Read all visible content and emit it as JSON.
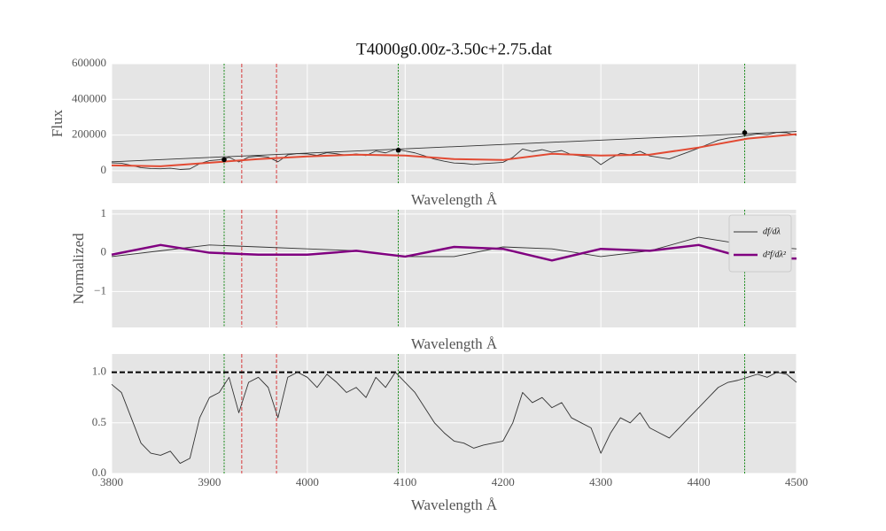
{
  "chart_data": [
    {
      "type": "line",
      "title": "T4000g0.00z-3.50c+2.75.dat",
      "xlabel": "Wavelength Å",
      "ylabel": "Flux",
      "xlim": [
        3800,
        4500
      ],
      "ylim": [
        -70000,
        600000
      ],
      "xticks": [
        3800,
        3900,
        4000,
        4100,
        4200,
        4300,
        4400,
        4500
      ],
      "xtick_labels": false,
      "yticks": [
        0,
        200000,
        400000,
        600000
      ],
      "grid": true,
      "vlines": [
        {
          "x": 3915,
          "color": "green",
          "style": "dotted"
        },
        {
          "x": 3933,
          "color": "#d62728",
          "style": "dashed"
        },
        {
          "x": 3968.5,
          "color": "#d62728",
          "style": "dashed"
        },
        {
          "x": 4093,
          "color": "green",
          "style": "dotted"
        },
        {
          "x": 4447,
          "color": "green",
          "style": "dotted"
        }
      ],
      "series": [
        {
          "color": "#333333",
          "width": 0.9,
          "x": [
            3800,
            3810,
            3820,
            3830,
            3840,
            3850,
            3860,
            3870,
            3880,
            3890,
            3900,
            3910,
            3920,
            3930,
            3940,
            3950,
            3960,
            3970,
            3980,
            3990,
            4000,
            4010,
            4020,
            4030,
            4040,
            4050,
            4060,
            4070,
            4080,
            4090,
            4100,
            4110,
            4120,
            4130,
            4140,
            4150,
            4160,
            4170,
            4180,
            4190,
            4200,
            4210,
            4220,
            4230,
            4240,
            4250,
            4260,
            4270,
            4280,
            4290,
            4300,
            4310,
            4320,
            4330,
            4340,
            4350,
            4360,
            4370,
            4380,
            4390,
            4400,
            4410,
            4420,
            4430,
            4440,
            4450,
            4460,
            4470,
            4480,
            4490,
            4500
          ],
          "values": [
            44000,
            42000,
            30000,
            17000,
            12000,
            11000,
            14000,
            7000,
            10000,
            40000,
            56000,
            61000,
            75000,
            49000,
            76000,
            82000,
            76000,
            50000,
            89000,
            96000,
            94000,
            86000,
            101000,
            95000,
            87000,
            94000,
            85000,
            110000,
            100000,
            120000,
            111000,
            100000,
            83000,
            65000,
            53000,
            43000,
            41000,
            35000,
            40000,
            43000,
            47000,
            75000,
            122000,
            108000,
            118000,
            104000,
            113000,
            90000,
            83000,
            76000,
            34000,
            70000,
            97000,
            89000,
            109000,
            83000,
            74000,
            66000,
            86000,
            106000,
            127000,
            149000,
            171000,
            183000,
            189000,
            198000,
            206000,
            202000,
            215000,
            213000,
            198000
          ]
        },
        {
          "color": "#333333",
          "width": 0.9,
          "x": [
            3800,
            4500
          ],
          "values": [
            50000,
            220000
          ]
        },
        {
          "color": "#e24a33",
          "width": 2,
          "x": [
            3800,
            3850,
            3900,
            3950,
            4000,
            4050,
            4100,
            4150,
            4200,
            4250,
            4300,
            4350,
            4400,
            4450,
            4500
          ],
          "values": [
            30000,
            25000,
            45000,
            65000,
            80000,
            90000,
            85000,
            65000,
            60000,
            95000,
            85000,
            90000,
            130000,
            180000,
            205000
          ]
        },
        {
          "color": "#000000",
          "marker": true,
          "x": [
            3915,
            4093,
            4447
          ],
          "values": [
            62000,
            115000,
            213000
          ]
        }
      ]
    },
    {
      "type": "line",
      "xlabel": "Wavelength Å",
      "ylabel": "Normalized",
      "xlim": [
        3800,
        4500
      ],
      "ylim": [
        -1.93,
        1.11
      ],
      "xticks": [
        3800,
        3900,
        4000,
        4100,
        4200,
        4300,
        4400,
        4500
      ],
      "xtick_labels": false,
      "yticks": [
        {
          "value": -1,
          "label": "−1"
        },
        0,
        1
      ],
      "grid": true,
      "legend": "upper right",
      "vlines": [
        {
          "x": 3915,
          "color": "green",
          "style": "dotted"
        },
        {
          "x": 3933,
          "color": "#d62728",
          "style": "dashed"
        },
        {
          "x": 3968.5,
          "color": "#d62728",
          "style": "dashed"
        },
        {
          "x": 4093,
          "color": "green",
          "style": "dotted"
        },
        {
          "x": 4447,
          "color": "green",
          "style": "dotted"
        }
      ],
      "series": [
        {
          "name": "df/dλ",
          "color": "#333333",
          "width": 0.9,
          "x": [
            3800,
            3850,
            3900,
            3950,
            4000,
            4050,
            4100,
            4150,
            4200,
            4250,
            4300,
            4350,
            4400,
            4450,
            4500
          ],
          "values": [
            -0.1,
            0.05,
            0.2,
            0.15,
            0.1,
            0.05,
            -0.1,
            -0.1,
            0.15,
            0.1,
            -0.1,
            0.05,
            0.4,
            0.2,
            0.1
          ]
        },
        {
          "name": "d²f/dλ²",
          "color": "#800080",
          "width": 2.5,
          "x": [
            3800,
            3850,
            3900,
            3950,
            4000,
            4050,
            4100,
            4150,
            4200,
            4250,
            4300,
            4350,
            4400,
            4450,
            4500
          ],
          "values": [
            -0.05,
            0.2,
            0.0,
            -0.05,
            -0.05,
            0.05,
            -0.1,
            0.15,
            0.1,
            -0.2,
            0.1,
            0.05,
            0.2,
            -0.15,
            -0.15
          ]
        }
      ]
    },
    {
      "type": "line",
      "xlabel": "Wavelength Å",
      "xlim": [
        3800,
        4500
      ],
      "ylim": [
        0,
        1.18
      ],
      "xticks": [
        3800,
        3900,
        4000,
        4100,
        4200,
        4300,
        4400,
        4500
      ],
      "xtick_labels": true,
      "yticks": [
        {
          "value": 0,
          "label": "0.0"
        },
        {
          "value": 0.5,
          "label": "0.5"
        },
        {
          "value": 1,
          "label": "1.0"
        }
      ],
      "grid": true,
      "vlines": [
        {
          "x": 3915,
          "color": "green",
          "style": "dotted"
        },
        {
          "x": 3933,
          "color": "#d62728",
          "style": "dashed"
        },
        {
          "x": 3968.5,
          "color": "#d62728",
          "style": "dashed"
        },
        {
          "x": 4093,
          "color": "green",
          "style": "dotted"
        },
        {
          "x": 4447,
          "color": "green",
          "style": "dotted"
        }
      ],
      "hlines": [
        {
          "y": 1,
          "color": "#000000",
          "style": "bold-dashed"
        }
      ],
      "series": [
        {
          "color": "#333333",
          "width": 0.9,
          "x": [
            3800,
            3810,
            3820,
            3830,
            3840,
            3850,
            3860,
            3870,
            3880,
            3890,
            3900,
            3910,
            3920,
            3930,
            3940,
            3950,
            3960,
            3970,
            3980,
            3990,
            4000,
            4010,
            4020,
            4030,
            4040,
            4050,
            4060,
            4070,
            4080,
            4090,
            4100,
            4110,
            4120,
            4130,
            4140,
            4150,
            4160,
            4170,
            4180,
            4190,
            4200,
            4210,
            4220,
            4230,
            4240,
            4250,
            4260,
            4270,
            4280,
            4290,
            4300,
            4310,
            4320,
            4330,
            4340,
            4350,
            4360,
            4370,
            4380,
            4390,
            4400,
            4410,
            4420,
            4430,
            4440,
            4450,
            4460,
            4470,
            4480,
            4490,
            4500
          ],
          "values": [
            0.88,
            0.8,
            0.55,
            0.3,
            0.2,
            0.18,
            0.22,
            0.1,
            0.15,
            0.55,
            0.75,
            0.8,
            0.95,
            0.6,
            0.9,
            0.95,
            0.85,
            0.55,
            0.95,
            1.0,
            0.95,
            0.85,
            0.98,
            0.9,
            0.8,
            0.85,
            0.75,
            0.95,
            0.85,
            1.0,
            0.9,
            0.8,
            0.65,
            0.5,
            0.4,
            0.32,
            0.3,
            0.25,
            0.28,
            0.3,
            0.32,
            0.5,
            0.8,
            0.7,
            0.75,
            0.65,
            0.7,
            0.55,
            0.5,
            0.45,
            0.2,
            0.4,
            0.55,
            0.5,
            0.6,
            0.45,
            0.4,
            0.35,
            0.45,
            0.55,
            0.65,
            0.75,
            0.85,
            0.9,
            0.92,
            0.95,
            0.98,
            0.95,
            1.0,
            0.98,
            0.9
          ]
        }
      ]
    }
  ]
}
